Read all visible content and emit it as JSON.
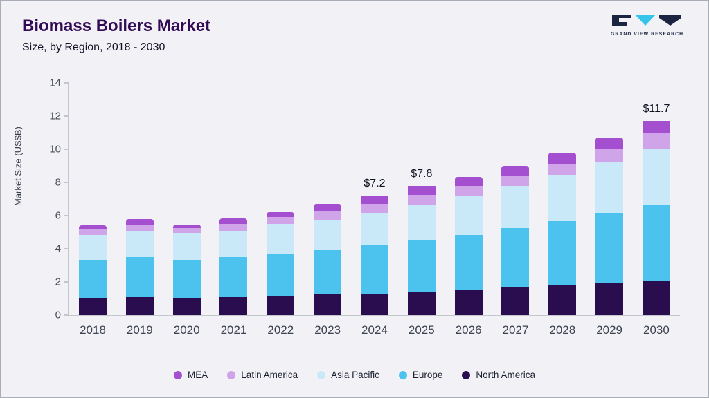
{
  "header": {
    "title": "Biomass Boilers Market",
    "subtitle": "Size, by Region, 2018 - 2030",
    "logo_text": "GRAND VIEW RESEARCH"
  },
  "colors": {
    "background": "#f2f1f6",
    "title": "#330b55",
    "axis": "#c3c6cd",
    "logo_dark": "#1b2440",
    "logo_cyan": "#35c4ea"
  },
  "chart_data": {
    "type": "bar",
    "stacked": true,
    "title": "Biomass Boilers Market Size, by Region, 2018 - 2030",
    "xlabel": "",
    "ylabel": "Market Size (US$B)",
    "ylim": [
      0,
      14
    ],
    "yticks": [
      0,
      2,
      4,
      6,
      8,
      10,
      12,
      14
    ],
    "grid": false,
    "legend_position": "bottom",
    "categories": [
      "2018",
      "2019",
      "2020",
      "2021",
      "2022",
      "2023",
      "2024",
      "2025",
      "2026",
      "2027",
      "2028",
      "2029",
      "2030"
    ],
    "series": [
      {
        "name": "North America",
        "color": "#2a0d4e",
        "values": [
          1.05,
          1.1,
          1.05,
          1.1,
          1.15,
          1.25,
          1.3,
          1.4,
          1.5,
          1.65,
          1.8,
          1.9,
          2.05
        ]
      },
      {
        "name": "Europe",
        "color": "#4cc2ee",
        "values": [
          2.3,
          2.4,
          2.3,
          2.4,
          2.55,
          2.65,
          2.9,
          3.1,
          3.35,
          3.6,
          3.85,
          4.25,
          4.6
        ]
      },
      {
        "name": "Asia Pacific",
        "color": "#c9e9f9",
        "values": [
          1.5,
          1.6,
          1.6,
          1.6,
          1.8,
          1.85,
          1.95,
          2.15,
          2.35,
          2.55,
          2.8,
          3.05,
          3.4
        ]
      },
      {
        "name": "Latin America",
        "color": "#cfa4e8",
        "values": [
          0.3,
          0.35,
          0.3,
          0.4,
          0.4,
          0.5,
          0.55,
          0.6,
          0.6,
          0.6,
          0.65,
          0.8,
          0.95
        ]
      },
      {
        "name": "MEA",
        "color": "#a44fd0",
        "values": [
          0.25,
          0.35,
          0.2,
          0.35,
          0.3,
          0.45,
          0.5,
          0.55,
          0.55,
          0.6,
          0.7,
          0.7,
          0.7
        ]
      }
    ],
    "bar_labels": [
      "",
      "",
      "",
      "",
      "",
      "",
      "$7.2",
      "$7.8",
      "",
      "",
      "",
      "",
      "$11.7"
    ],
    "legend_order": [
      "MEA",
      "Latin America",
      "Asia Pacific",
      "Europe",
      "North America"
    ]
  }
}
